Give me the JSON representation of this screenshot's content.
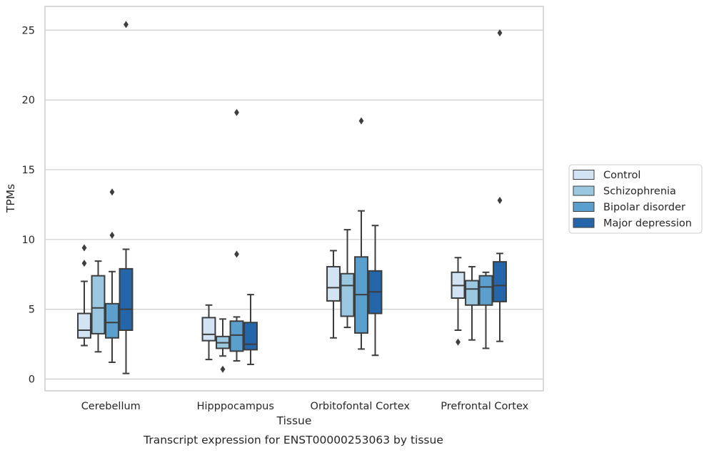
{
  "chart_data": {
    "type": "boxplot",
    "xlabel": "Tissue",
    "ylabel": "TPMs",
    "caption": "Transcript expression for ENST00000253063 by tissue",
    "categories": [
      "Cerebellum",
      "Hipppocampus",
      "Orbitofontal Cortex",
      "Prefrontal Cortex"
    ],
    "ylim": [
      -0.6,
      26.8
    ],
    "yticks": [
      0,
      5,
      10,
      15,
      20,
      25
    ],
    "grid": "horizontal",
    "legend_position": "right",
    "series": [
      {
        "name": "Control",
        "color": "#d2e3f3",
        "boxes": [
          {
            "whislo": 2.4,
            "q1": 2.95,
            "med": 3.5,
            "q3": 4.7,
            "whishi": 7.0,
            "fliers": [
              8.3,
              9.4
            ]
          },
          {
            "whislo": 1.4,
            "q1": 2.75,
            "med": 3.2,
            "q3": 4.4,
            "whishi": 5.3,
            "fliers": []
          },
          {
            "whislo": 2.95,
            "q1": 5.6,
            "med": 6.55,
            "q3": 8.05,
            "whishi": 9.2,
            "fliers": []
          },
          {
            "whislo": 3.5,
            "q1": 5.8,
            "med": 6.7,
            "q3": 7.65,
            "whishi": 8.7,
            "fliers": [
              2.65
            ]
          }
        ]
      },
      {
        "name": "Schizophrenia",
        "color": "#9ac8e0",
        "boxes": [
          {
            "whislo": 1.95,
            "q1": 3.25,
            "med": 5.1,
            "q3": 7.4,
            "whishi": 8.45,
            "fliers": []
          },
          {
            "whislo": 1.65,
            "q1": 2.2,
            "med": 2.6,
            "q3": 3.05,
            "whishi": 4.3,
            "fliers": [
              0.7
            ]
          },
          {
            "whislo": 3.7,
            "q1": 4.5,
            "med": 6.7,
            "q3": 7.55,
            "whishi": 10.7,
            "fliers": []
          },
          {
            "whislo": 2.8,
            "q1": 5.3,
            "med": 6.45,
            "q3": 7.05,
            "whishi": 8.05,
            "fliers": []
          }
        ]
      },
      {
        "name": "Bipolar disorder",
        "color": "#5a9fcd",
        "boxes": [
          {
            "whislo": 1.2,
            "q1": 2.95,
            "med": 4.05,
            "q3": 5.4,
            "whishi": 7.7,
            "fliers": [
              10.3,
              13.4
            ]
          },
          {
            "whislo": 1.3,
            "q1": 2.0,
            "med": 3.15,
            "q3": 4.15,
            "whishi": 4.45,
            "fliers": [
              8.95,
              19.1
            ]
          },
          {
            "whislo": 2.15,
            "q1": 3.3,
            "med": 6.05,
            "q3": 8.75,
            "whishi": 12.05,
            "fliers": [
              18.5
            ]
          },
          {
            "whislo": 2.2,
            "q1": 5.3,
            "med": 6.6,
            "q3": 7.4,
            "whishi": 7.65,
            "fliers": []
          }
        ]
      },
      {
        "name": "Major depression",
        "color": "#2565a9",
        "boxes": [
          {
            "whislo": 0.4,
            "q1": 3.5,
            "med": 5.0,
            "q3": 7.9,
            "whishi": 9.3,
            "fliers": [
              25.4
            ]
          },
          {
            "whislo": 1.05,
            "q1": 2.1,
            "med": 2.5,
            "q3": 4.05,
            "whishi": 6.05,
            "fliers": []
          },
          {
            "whislo": 1.7,
            "q1": 4.7,
            "med": 6.25,
            "q3": 7.75,
            "whishi": 11.0,
            "fliers": []
          },
          {
            "whislo": 2.7,
            "q1": 5.55,
            "med": 6.7,
            "q3": 8.4,
            "whishi": 9.0,
            "fliers": [
              12.8,
              24.8
            ]
          }
        ]
      }
    ]
  }
}
